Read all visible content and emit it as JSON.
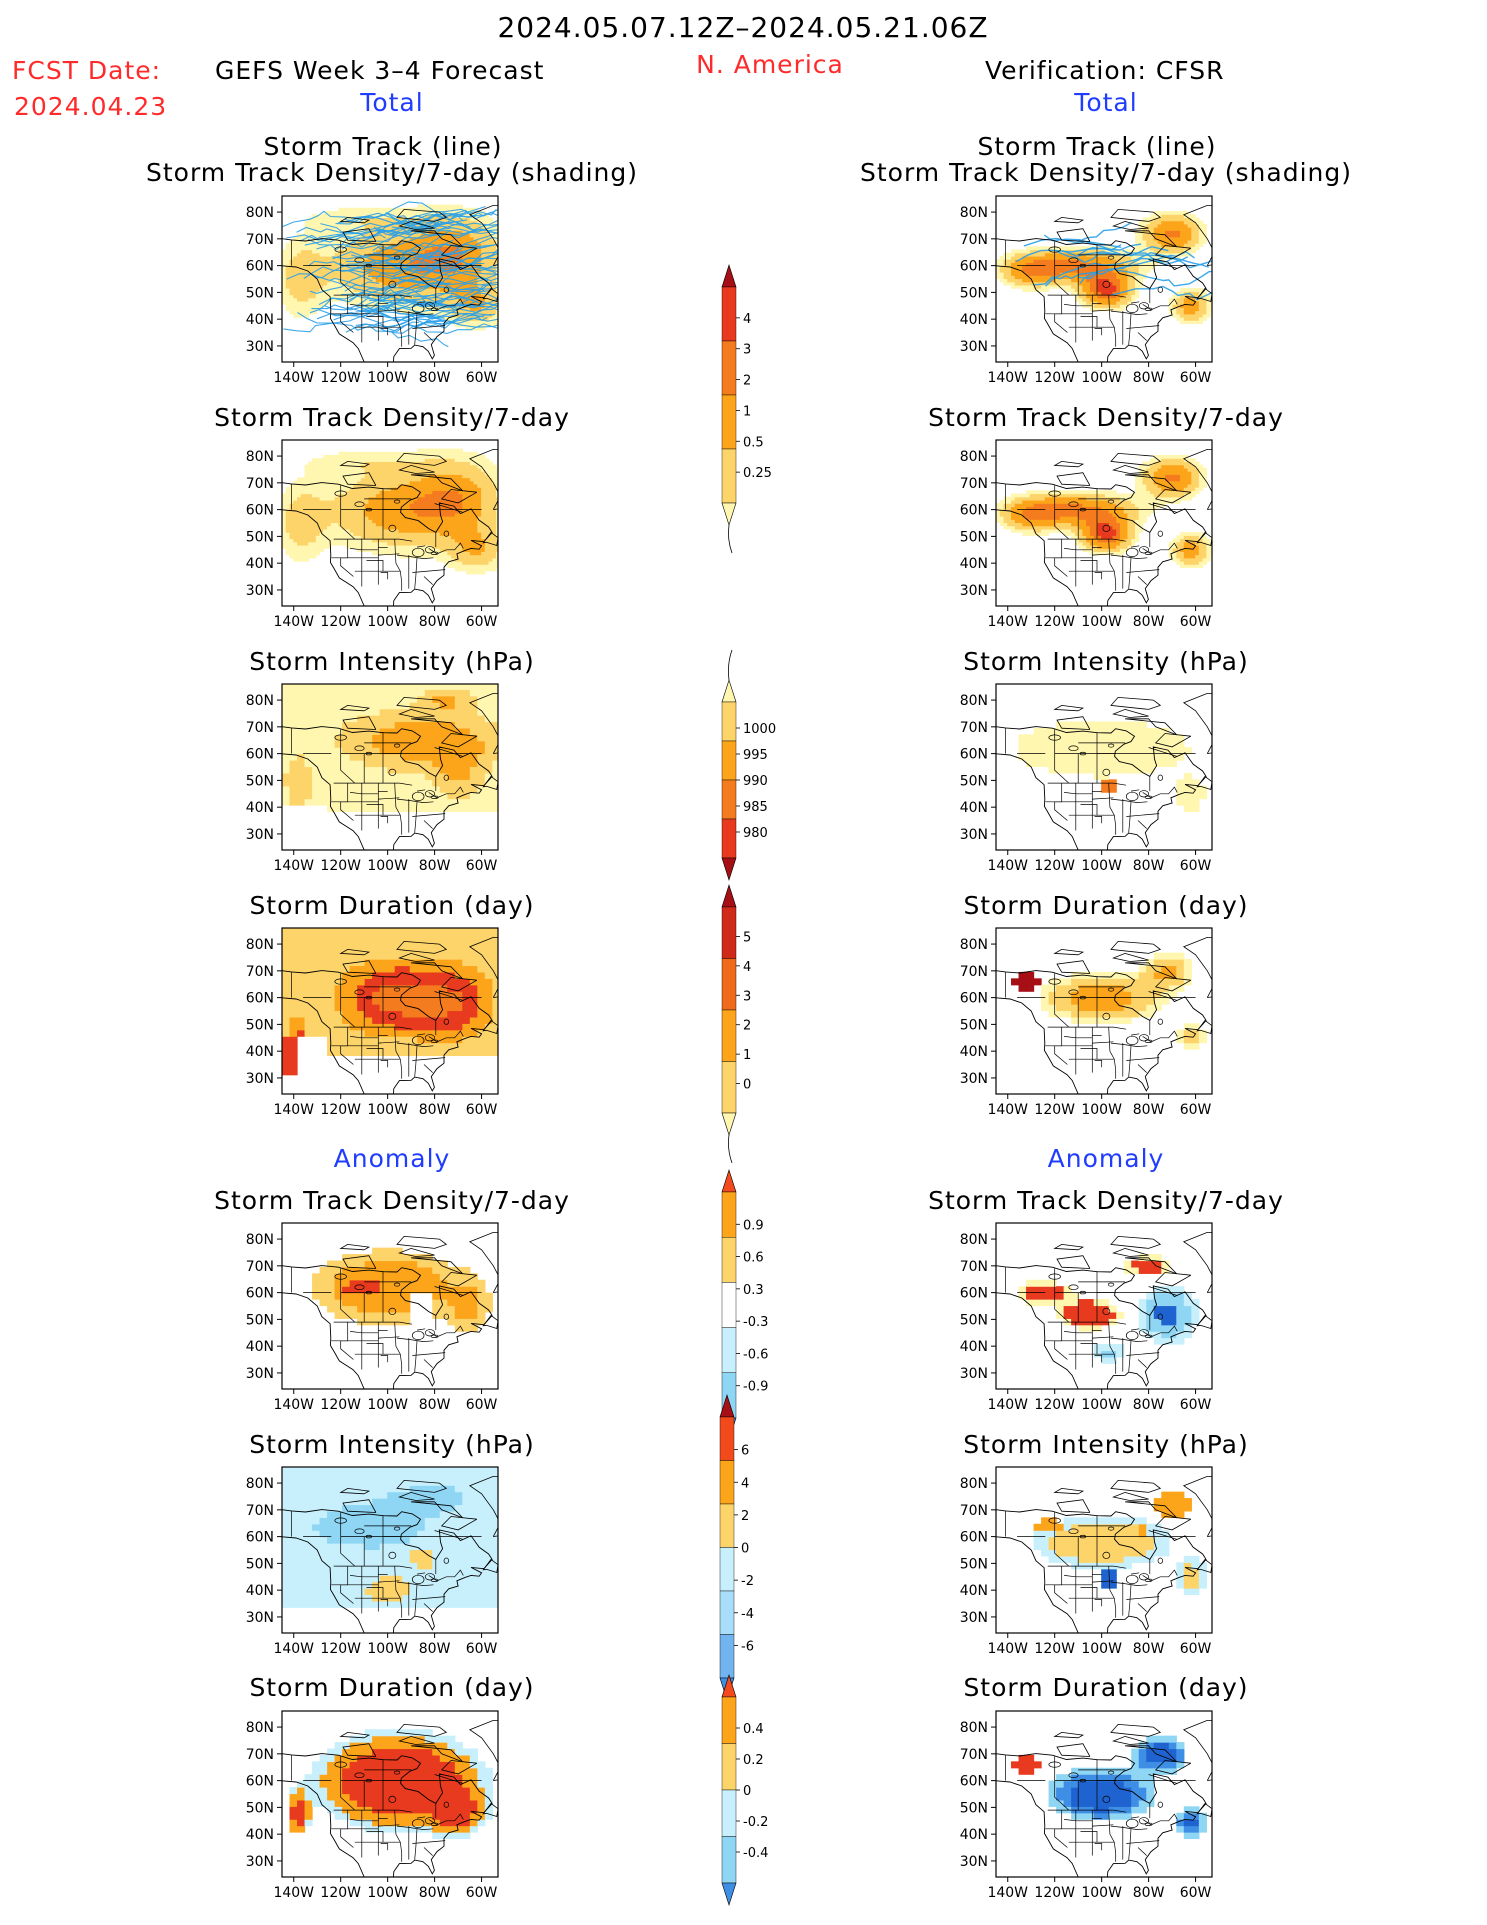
{
  "header": {
    "period": "2024.05.07.12Z–2024.05.21.06Z",
    "region": "N. America",
    "fcst_label": "FCST Date:",
    "fcst_date": "2024.04.23",
    "left_title": "GEFS Week 3–4 Forecast",
    "right_title": "Verification: CFSR"
  },
  "sections": {
    "total": "Total",
    "anomaly": "Anomaly"
  },
  "axes": {
    "lat_labels": [
      "80N",
      "70N",
      "60N",
      "50N",
      "40N",
      "30N"
    ],
    "lon_labels": [
      "140W",
      "120W",
      "100W",
      "80W",
      "60W"
    ]
  },
  "panels": [
    {
      "id": "l1",
      "col": "left",
      "title1": "Storm Track (line)",
      "title2": "Storm Track Density/7-day (shading)",
      "field": "dens_fc",
      "tracks": true
    },
    {
      "id": "r1",
      "col": "right",
      "title1": "Storm Track (line)",
      "title2": "Storm Track Density/7-day (shading)",
      "field": "dens_ob",
      "tracks": true
    },
    {
      "id": "l2",
      "col": "left",
      "title1": "Storm Track Density/7-day",
      "title2": "",
      "field": "dens_fc",
      "tracks": false
    },
    {
      "id": "r2",
      "col": "right",
      "title1": "Storm Track Density/7-day",
      "title2": "",
      "field": "dens_ob",
      "tracks": false
    },
    {
      "id": "l3",
      "col": "left",
      "title1": "Storm Intensity (hPa)",
      "title2": "",
      "field": "int_fc",
      "tracks": false
    },
    {
      "id": "r3",
      "col": "right",
      "title1": "Storm Intensity (hPa)",
      "title2": "",
      "field": "int_ob",
      "tracks": false
    },
    {
      "id": "l4",
      "col": "left",
      "title1": "Storm Duration (day)",
      "title2": "",
      "field": "dur_fc",
      "tracks": false
    },
    {
      "id": "r4",
      "col": "right",
      "title1": "Storm Duration (day)",
      "title2": "",
      "field": "dur_ob",
      "tracks": false
    },
    {
      "id": "l5",
      "col": "left",
      "title1": "Storm Track Density/7-day",
      "title2": "",
      "field": "adens_fc",
      "tracks": false
    },
    {
      "id": "r5",
      "col": "right",
      "title1": "Storm Track Density/7-day",
      "title2": "",
      "field": "adens_ob",
      "tracks": false
    },
    {
      "id": "l6",
      "col": "left",
      "title1": "Storm Intensity (hPa)",
      "title2": "",
      "field": "aint_fc",
      "tracks": false
    },
    {
      "id": "r6",
      "col": "right",
      "title1": "Storm Intensity (hPa)",
      "title2": "",
      "field": "aint_ob",
      "tracks": false
    },
    {
      "id": "l7",
      "col": "left",
      "title1": "Storm Duration (day)",
      "title2": "",
      "field": "adur_fc",
      "tracks": false
    },
    {
      "id": "r7",
      "col": "right",
      "title1": "Storm Duration (day)",
      "title2": "",
      "field": "adur_ob",
      "tracks": false
    }
  ],
  "colorbars": [
    {
      "id": "cb1",
      "labels": [
        "4",
        "3",
        "2",
        "1",
        "0.5",
        "0.25"
      ],
      "colors": [
        "#a50f15",
        "#e83a1e",
        "#f57c1e",
        "#fca51b",
        "#fdd46a",
        "#fff6b0"
      ],
      "tail": "bottom"
    },
    {
      "id": "cb2",
      "labels": [
        "1000",
        "995",
        "990",
        "985",
        "980"
      ],
      "colors": [
        "#fff6b0",
        "#fdd46a",
        "#fca51b",
        "#f57c1e",
        "#e83a1e",
        "#a50f15"
      ],
      "tail": "top"
    },
    {
      "id": "cb3",
      "labels": [
        "5",
        "4",
        "3",
        "2",
        "1",
        "0"
      ],
      "colors": [
        "#a50f15",
        "#cf2a1a",
        "#f06a1c",
        "#fca51b",
        "#fdd46a",
        "#fff6b0"
      ],
      "tail": "bottom"
    },
    {
      "id": "cb4",
      "labels": [
        "0.9",
        "0.6",
        "0.3",
        "-0.3",
        "-0.6",
        "-0.9"
      ],
      "colors": [
        "#f24a1d",
        "#fca51b",
        "#fdd46a",
        "#ffffff",
        "#c8f0fc",
        "#8ed6f4",
        "#3f8ee6"
      ],
      "tail": "none"
    },
    {
      "id": "cb5",
      "labels": [
        "6",
        "4",
        "2",
        "0",
        "-2",
        "-4",
        "-6"
      ],
      "colors": [
        "#a50f15",
        "#f24a1d",
        "#fca51b",
        "#fdd46a",
        "#c8f0fc",
        "#a9defa",
        "#71b4f0",
        "#3f8ee6"
      ],
      "tail": "none"
    },
    {
      "id": "cb6",
      "labels": [
        "0.4",
        "0.2",
        "0",
        "-0.2",
        "-0.4"
      ],
      "colors": [
        "#f24a1d",
        "#fca51b",
        "#fdd46a",
        "#c8f0fc",
        "#8ed6f4",
        "#3f8ee6"
      ],
      "tail": "none"
    }
  ],
  "colors": {
    "very_light": "#fff6b0",
    "light": "#fdd46a",
    "mid": "#fca51b",
    "orange": "#f57c1e",
    "red": "#e83a1e",
    "dark_red": "#a50f15",
    "light_blue": "#c8f0fc",
    "mid_blue": "#8ed6f4",
    "blue": "#3f8ee6",
    "dark_blue": "#1f63d1",
    "track_line": "#2aa0e8"
  }
}
